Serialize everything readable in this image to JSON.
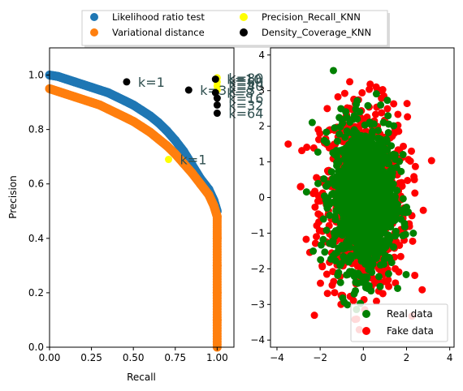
{
  "chart_data": [
    {
      "type": "scatter",
      "xlabel": "Recall",
      "ylabel": "Precision",
      "xlim": [
        0,
        1.1
      ],
      "ylim": [
        0,
        1.1
      ],
      "xticks": [
        "0.00",
        "0.25",
        "0.50",
        "0.75",
        "1.00"
      ],
      "yticks": [
        "0.0",
        "0.2",
        "0.4",
        "0.6",
        "0.8",
        "1.0"
      ],
      "legend_position": "above plots",
      "series": [
        {
          "name": "Likelihood ratio test",
          "color": "#1f77b4",
          "points": [
            [
              0.0,
              1.0
            ],
            [
              0.05,
              0.995
            ],
            [
              0.1,
              0.985
            ],
            [
              0.15,
              0.975
            ],
            [
              0.2,
              0.965
            ],
            [
              0.25,
              0.955
            ],
            [
              0.3,
              0.945
            ],
            [
              0.35,
              0.935
            ],
            [
              0.4,
              0.92
            ],
            [
              0.45,
              0.905
            ],
            [
              0.5,
              0.89
            ],
            [
              0.55,
              0.87
            ],
            [
              0.6,
              0.85
            ],
            [
              0.65,
              0.825
            ],
            [
              0.7,
              0.795
            ],
            [
              0.75,
              0.76
            ],
            [
              0.8,
              0.72
            ],
            [
              0.85,
              0.67
            ],
            [
              0.9,
              0.62
            ],
            [
              0.95,
              0.58
            ],
            [
              0.98,
              0.54
            ],
            [
              1.0,
              0.5
            ]
          ]
        },
        {
          "name": "Variational distance",
          "color": "#ff7f0e",
          "points": [
            [
              0.0,
              0.95
            ],
            [
              0.05,
              0.94
            ],
            [
              0.1,
              0.93
            ],
            [
              0.15,
              0.92
            ],
            [
              0.2,
              0.91
            ],
            [
              0.25,
              0.9
            ],
            [
              0.3,
              0.89
            ],
            [
              0.35,
              0.875
            ],
            [
              0.4,
              0.86
            ],
            [
              0.45,
              0.845
            ],
            [
              0.5,
              0.83
            ],
            [
              0.55,
              0.81
            ],
            [
              0.6,
              0.79
            ],
            [
              0.65,
              0.765
            ],
            [
              0.7,
              0.74
            ],
            [
              0.75,
              0.71
            ],
            [
              0.8,
              0.675
            ],
            [
              0.85,
              0.64
            ],
            [
              0.9,
              0.6
            ],
            [
              0.95,
              0.56
            ],
            [
              0.98,
              0.52
            ],
            [
              1.0,
              0.48
            ],
            [
              1.0,
              0.4
            ],
            [
              1.0,
              0.3
            ],
            [
              1.0,
              0.2
            ],
            [
              1.0,
              0.1
            ],
            [
              1.0,
              0.0
            ]
          ]
        },
        {
          "name": "Precision_Recall_KNN",
          "color": "#ffff00",
          "points": [
            [
              0.71,
              0.69
            ],
            [
              1.0,
              0.99
            ],
            [
              1.0,
              0.975
            ],
            [
              1.0,
              0.96
            ],
            [
              1.0,
              0.945
            ]
          ],
          "labels": [
            "k=1",
            "k=80",
            "k=60",
            "k=40",
            "k=3"
          ]
        },
        {
          "name": "Density_Coverage_KNN",
          "color": "#000000",
          "points": [
            [
              0.46,
              0.975
            ],
            [
              0.83,
              0.945
            ],
            [
              0.99,
              0.985
            ],
            [
              0.99,
              0.935
            ],
            [
              1.0,
              0.915
            ],
            [
              1.0,
              0.89
            ],
            [
              1.0,
              0.86
            ]
          ],
          "labels": [
            "k=1",
            "k=3",
            "k=10",
            "k=8",
            "k=16",
            "k=32",
            "k=64"
          ]
        }
      ]
    },
    {
      "type": "scatter",
      "xlim": [
        -4.3,
        4.2
      ],
      "ylim": [
        -4.2,
        4.2
      ],
      "xticks": [
        "−4",
        "−2",
        "0",
        "2",
        "4"
      ],
      "yticks": [
        "−4",
        "−3",
        "−2",
        "−1",
        "0",
        "1",
        "2",
        "3",
        "4"
      ],
      "legend_position": "lower-right",
      "series": [
        {
          "name": "Real data",
          "color": "#008000",
          "std_x": 0.7,
          "std_y": 1.0
        },
        {
          "name": "Fake data",
          "color": "#ff0000",
          "std_x": 1.0,
          "std_y": 1.3
        }
      ]
    }
  ]
}
